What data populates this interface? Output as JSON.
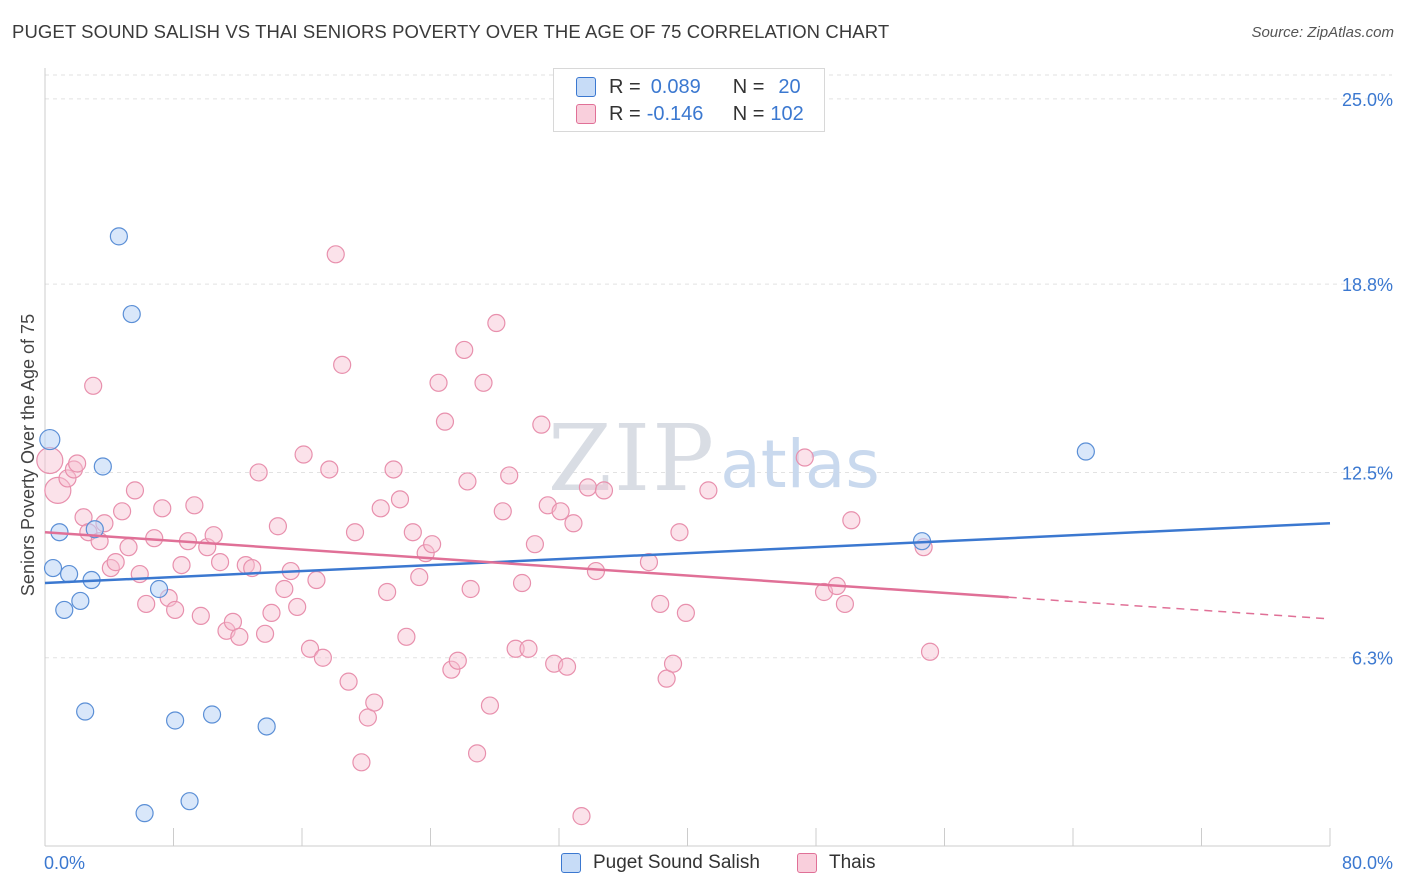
{
  "title": "PUGET SOUND SALISH VS THAI SENIORS POVERTY OVER THE AGE OF 75 CORRELATION CHART",
  "source": "Source: ZipAtlas.com",
  "colors": {
    "blue": "#3b78d0",
    "pink": "#e07097",
    "blue_fill": "#b9d3f5",
    "pink_fill": "#f7c3d3",
    "axis_text": "#3b78d0"
  },
  "legend": {
    "rows": [
      {
        "r_label": "R =",
        "r_value": "0.089",
        "n_label": "N =",
        "n_value": "20"
      },
      {
        "r_label": "R =",
        "r_value": "-0.146",
        "n_label": "N =",
        "n_value": "102"
      }
    ]
  },
  "bottom_legend": [
    "Puget Sound Salish",
    "Thais"
  ],
  "watermark": {
    "zip": "ZIP",
    "atlas": "atlas"
  },
  "chart_data": {
    "type": "scatter",
    "ylabel": "Seniors Poverty Over the Age of 75",
    "xlim": [
      0,
      80
    ],
    "ylim": [
      0,
      25.8
    ],
    "x_tick_labels": [
      "0.0%",
      "80.0%"
    ],
    "y_ticks": [
      6.3,
      12.5,
      18.8,
      25.0
    ],
    "y_tick_labels": [
      "6.3%",
      "12.5%",
      "18.8%",
      "25.0%"
    ],
    "grid": true,
    "series": [
      {
        "name": "Puget Sound Salish",
        "color": "#3b78d0",
        "points": [
          [
            0.3,
            13.6
          ],
          [
            0.5,
            9.3
          ],
          [
            0.9,
            10.5
          ],
          [
            1.2,
            7.9
          ],
          [
            1.5,
            9.1
          ],
          [
            2.2,
            8.2
          ],
          [
            2.5,
            4.5
          ],
          [
            2.9,
            8.9
          ],
          [
            3.1,
            10.6
          ],
          [
            3.6,
            12.7
          ],
          [
            4.6,
            20.4
          ],
          [
            5.4,
            17.8
          ],
          [
            6.2,
            1.1
          ],
          [
            7.1,
            8.6
          ],
          [
            8.1,
            4.2
          ],
          [
            9.0,
            1.5
          ],
          [
            10.4,
            4.4
          ],
          [
            13.8,
            4.0
          ],
          [
            54.6,
            10.2
          ],
          [
            64.8,
            13.2
          ]
        ],
        "trend": {
          "x": [
            0,
            80
          ],
          "y": [
            8.8,
            10.8
          ]
        }
      },
      {
        "name": "Thais",
        "color": "#e07097",
        "points": [
          [
            0.3,
            12.9
          ],
          [
            0.8,
            11.9
          ],
          [
            1.4,
            12.3
          ],
          [
            1.8,
            12.6
          ],
          [
            2.0,
            12.8
          ],
          [
            2.4,
            11.0
          ],
          [
            2.7,
            10.5
          ],
          [
            3.0,
            15.4
          ],
          [
            3.4,
            10.2
          ],
          [
            3.7,
            10.8
          ],
          [
            4.1,
            9.3
          ],
          [
            4.4,
            9.5
          ],
          [
            4.8,
            11.2
          ],
          [
            5.2,
            10.0
          ],
          [
            5.6,
            11.9
          ],
          [
            5.9,
            9.1
          ],
          [
            6.3,
            8.1
          ],
          [
            6.8,
            10.3
          ],
          [
            7.3,
            11.3
          ],
          [
            7.7,
            8.3
          ],
          [
            8.1,
            7.9
          ],
          [
            8.5,
            9.4
          ],
          [
            8.9,
            10.2
          ],
          [
            9.3,
            11.4
          ],
          [
            9.7,
            7.7
          ],
          [
            10.1,
            10.0
          ],
          [
            10.5,
            10.4
          ],
          [
            10.9,
            9.5
          ],
          [
            11.3,
            7.2
          ],
          [
            11.7,
            7.5
          ],
          [
            12.1,
            7.0
          ],
          [
            12.5,
            9.4
          ],
          [
            12.9,
            9.3
          ],
          [
            13.3,
            12.5
          ],
          [
            13.7,
            7.1
          ],
          [
            14.1,
            7.8
          ],
          [
            14.5,
            10.7
          ],
          [
            14.9,
            8.6
          ],
          [
            15.3,
            9.2
          ],
          [
            15.7,
            8.0
          ],
          [
            16.1,
            13.1
          ],
          [
            16.5,
            6.6
          ],
          [
            16.9,
            8.9
          ],
          [
            17.3,
            6.3
          ],
          [
            17.7,
            12.6
          ],
          [
            18.1,
            19.8
          ],
          [
            18.5,
            16.1
          ],
          [
            18.9,
            5.5
          ],
          [
            19.3,
            10.5
          ],
          [
            19.7,
            2.8
          ],
          [
            20.1,
            4.3
          ],
          [
            20.5,
            4.8
          ],
          [
            20.9,
            11.3
          ],
          [
            21.3,
            8.5
          ],
          [
            21.7,
            12.6
          ],
          [
            22.1,
            11.6
          ],
          [
            22.5,
            7.0
          ],
          [
            22.9,
            10.5
          ],
          [
            23.3,
            9.0
          ],
          [
            23.7,
            9.8
          ],
          [
            24.1,
            10.1
          ],
          [
            24.5,
            15.5
          ],
          [
            24.9,
            14.2
          ],
          [
            25.3,
            5.9
          ],
          [
            25.7,
            6.2
          ],
          [
            26.1,
            16.6
          ],
          [
            26.5,
            8.6
          ],
          [
            26.9,
            3.1
          ],
          [
            27.3,
            15.5
          ],
          [
            27.7,
            4.7
          ],
          [
            28.1,
            17.5
          ],
          [
            28.5,
            11.2
          ],
          [
            28.9,
            12.4
          ],
          [
            29.3,
            6.6
          ],
          [
            29.7,
            8.8
          ],
          [
            30.1,
            6.6
          ],
          [
            30.5,
            10.1
          ],
          [
            30.9,
            14.1
          ],
          [
            31.3,
            11.4
          ],
          [
            31.7,
            6.1
          ],
          [
            32.1,
            11.2
          ],
          [
            32.5,
            6.0
          ],
          [
            32.9,
            10.8
          ],
          [
            33.4,
            1.0
          ],
          [
            33.8,
            12.0
          ],
          [
            34.3,
            9.2
          ],
          [
            34.8,
            11.9
          ],
          [
            37.6,
            9.5
          ],
          [
            38.3,
            8.1
          ],
          [
            38.7,
            5.6
          ],
          [
            39.1,
            6.1
          ],
          [
            39.5,
            10.5
          ],
          [
            39.9,
            7.8
          ],
          [
            41.3,
            11.9
          ],
          [
            47.3,
            13.0
          ],
          [
            48.5,
            8.5
          ],
          [
            49.3,
            8.7
          ],
          [
            49.8,
            8.1
          ],
          [
            50.2,
            10.9
          ],
          [
            54.7,
            10.0
          ],
          [
            55.1,
            6.5
          ],
          [
            26.3,
            12.2
          ]
        ],
        "trend": {
          "x": [
            0,
            80
          ],
          "y": [
            10.5,
            7.6
          ],
          "solid_until_x": 60
        }
      }
    ]
  }
}
